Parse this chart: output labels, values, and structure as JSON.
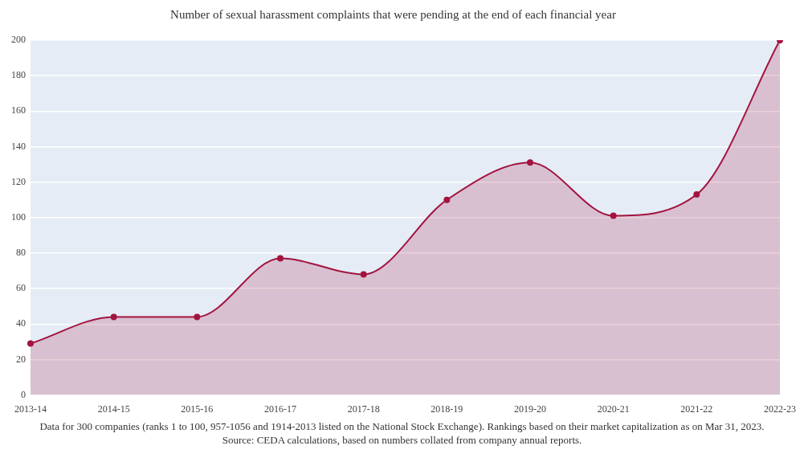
{
  "chart_data": {
    "type": "area",
    "title": "Number of sexual harassment complaints that were pending at the end of each financial year",
    "categories": [
      "2013-14",
      "2014-15",
      "2015-16",
      "2016-17",
      "2017-18",
      "2018-19",
      "2019-20",
      "2020-21",
      "2021-22",
      "2022-23"
    ],
    "series": [
      {
        "color": "#a3143f",
        "values": [
          29,
          44,
          44,
          77,
          68,
          110,
          131,
          101,
          113,
          200
        ]
      }
    ],
    "ylim": [
      0,
      200
    ],
    "yticks": [
      0,
      20,
      40,
      60,
      80,
      100,
      120,
      140,
      160,
      180,
      200
    ],
    "grid": "y",
    "legend": false,
    "marker": "circle",
    "line_style": "solid",
    "annotations": [
      "Data for 300 companies (ranks 1 to 100, 957-1056 and 1914-2013 listed on the National Stock Exchange). Rankings based on their market capitalization as on Mar 31, 2023. Source: CEDA calculations, based on numbers collated from company annual reports."
    ]
  }
}
